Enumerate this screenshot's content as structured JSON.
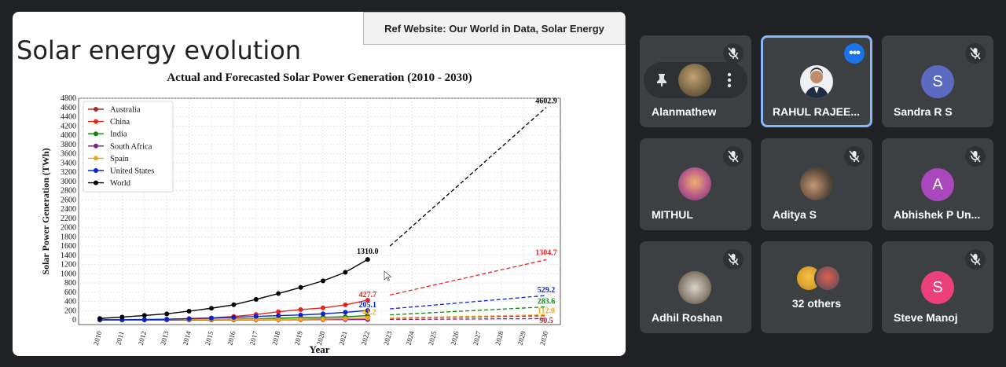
{
  "slide": {
    "title": "Solar energy evolution",
    "ref_website": "Ref Website: Our World in Data, Solar Energy"
  },
  "chart_data": {
    "type": "line",
    "title": "Actual and Forecasted Solar Power Generation (2010 - 2030)",
    "xlabel": "Year",
    "ylabel": "Solar Power Generation (TWh)",
    "x": [
      2010,
      2011,
      2012,
      2013,
      2014,
      2015,
      2016,
      2017,
      2018,
      2019,
      2020,
      2021,
      2022,
      2023,
      2024,
      2025,
      2026,
      2027,
      2028,
      2029,
      2030
    ],
    "ylim": [
      -100,
      4800
    ],
    "yticks": [
      0,
      200,
      400,
      600,
      800,
      1000,
      1200,
      1400,
      1600,
      1800,
      2000,
      2200,
      2400,
      2600,
      2800,
      3000,
      3200,
      3400,
      3600,
      3800,
      4000,
      4200,
      4400,
      4600,
      4800
    ],
    "grid": true,
    "legend_position": "top-left",
    "series": [
      {
        "name": "Australia",
        "color": "#a52a2a",
        "actual": [
          0,
          1,
          2,
          4,
          5,
          6,
          8,
          10,
          13,
          18,
          24,
          30,
          37
        ],
        "forecast": {
          "start": 37,
          "end": 90.5
        }
      },
      {
        "name": "China",
        "color": "#e8231a",
        "actual": [
          1,
          3,
          6,
          15,
          30,
          45,
          75,
          118,
          177,
          224,
          261,
          327,
          427.7
        ],
        "forecast": {
          "start": 540,
          "end": 1304.7
        }
      },
      {
        "name": "India",
        "color": "#108010",
        "actual": [
          0,
          1,
          2,
          4,
          6,
          10,
          20,
          26,
          39,
          50,
          58,
          68,
          95
        ],
        "forecast": {
          "start": 110,
          "end": 283.6
        }
      },
      {
        "name": "South Africa",
        "color": "#7d1e8c",
        "actual": [
          0,
          0,
          0,
          0,
          1,
          2,
          3,
          4,
          5,
          6,
          7,
          8,
          9
        ],
        "forecast": {
          "start": 10,
          "end": 30
        }
      },
      {
        "name": "Spain",
        "color": "#f5a41d",
        "actual": [
          7,
          8,
          12,
          13,
          13,
          14,
          14,
          15,
          15,
          16,
          20,
          27,
          41
        ],
        "forecast": {
          "start": 45,
          "end": 112.0
        }
      },
      {
        "name": "United States",
        "color": "#0b24c9",
        "actual": [
          3,
          5,
          9,
          16,
          26,
          39,
          55,
          76,
          94,
          107,
          132,
          165,
          205.1
        ],
        "forecast": {
          "start": 240,
          "end": 529.2
        }
      },
      {
        "name": "World",
        "color": "#000000",
        "actual": [
          32,
          62,
          97,
          132,
          190,
          253,
          329,
          445,
          571,
          704,
          846,
          1032,
          1310.0
        ],
        "forecast": {
          "start": 1600,
          "end": 4602.9
        }
      }
    ],
    "data_labels": [
      {
        "series": "World",
        "year": 2022,
        "text": "1310.0",
        "color": "#000000"
      },
      {
        "series": "China",
        "year": 2022,
        "text": "427.7",
        "color": "#e8231a"
      },
      {
        "series": "United States",
        "year": 2022,
        "text": "205.1",
        "color": "#0b24c9"
      },
      {
        "series": "Spain",
        "year": 2022,
        "text": "41.2",
        "color": "#f5a41d"
      },
      {
        "series": "World",
        "year": 2030,
        "text": "4602.9",
        "color": "#000000"
      },
      {
        "series": "China",
        "year": 2030,
        "text": "1304.7",
        "color": "#e8231a"
      },
      {
        "series": "United States",
        "year": 2030,
        "text": "529.2",
        "color": "#0b24c9"
      },
      {
        "series": "India",
        "year": 2030,
        "text": "283.6",
        "color": "#108010"
      },
      {
        "series": "Spain",
        "year": 2030,
        "text": "112.0",
        "color": "#f5a41d"
      },
      {
        "series": "Australia",
        "year": 2030,
        "text": "90.5",
        "color": "#a52a2a"
      }
    ]
  },
  "participants": [
    {
      "name": "Alanmathew",
      "type": "photo",
      "muted": true,
      "pinned": true,
      "avatar_color": "#8a7a5a"
    },
    {
      "name": "RAHUL RAJEE...",
      "type": "photo",
      "muted": false,
      "active": true,
      "avatar_color": "#e7eaf0"
    },
    {
      "name": "Sandra R S",
      "type": "initial",
      "initial": "S",
      "muted": true,
      "avatar_color": "#5c6bc0"
    },
    {
      "name": "MITHUL",
      "type": "photo",
      "muted": true,
      "avatar_color": "#7a5a8a"
    },
    {
      "name": "Aditya S",
      "type": "photo",
      "muted": true,
      "avatar_color": "#3a4a5a"
    },
    {
      "name": "Abhishek P Un...",
      "type": "initial",
      "initial": "A",
      "muted": true,
      "avatar_color": "#ab47bc"
    },
    {
      "name": "Adhil Roshan",
      "type": "photo",
      "muted": true,
      "avatar_color": "#9a9a8a"
    },
    {
      "name": "32 others",
      "type": "group",
      "muted": false,
      "avatar_color": "#d9a23a"
    },
    {
      "name": "Steve Manoj",
      "type": "initial",
      "initial": "S",
      "muted": true,
      "avatar_color": "#ec407a"
    }
  ]
}
